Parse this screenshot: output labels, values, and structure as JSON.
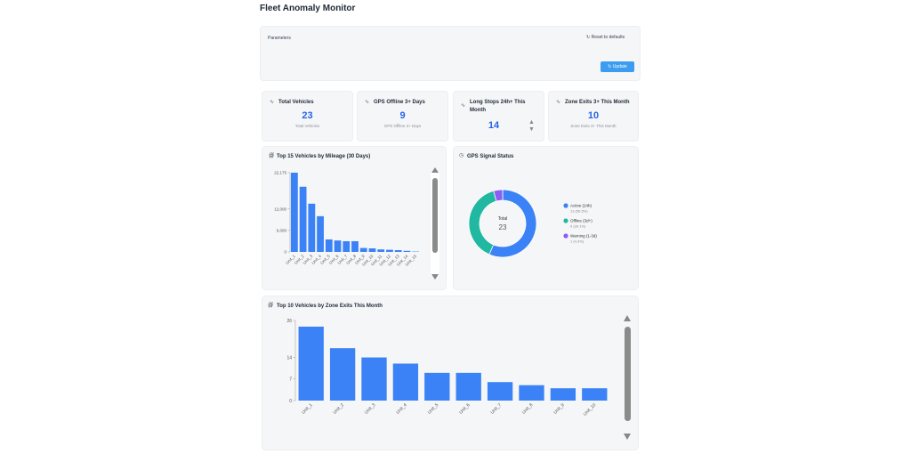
{
  "header": {
    "title": "Fleet Anomaly Monitor"
  },
  "parameters": {
    "label": "Parameters",
    "reset_button": "Reset to defaults",
    "update_button": "Update"
  },
  "kpis": [
    {
      "title": "Total Vehicles",
      "value": 23,
      "subtitle": "Total Vehicles"
    },
    {
      "title": "GPS Offline 3+ Days",
      "value": 9,
      "subtitle": "GPS Offline 3+ Days"
    },
    {
      "title": "Long Stops 24h+ This Month",
      "value": 14
    },
    {
      "title": "Zone Exits 3+ This Month",
      "value": 10,
      "subtitle": "Zone Exits 3+ This Month"
    }
  ],
  "chart_data": [
    {
      "type": "bar",
      "title": "Top 15 Vehicles by Mileage (30 Days)",
      "categories": [
        "Unit_1",
        "Unit_2",
        "Unit_3",
        "Unit_4",
        "Unit_5",
        "Unit_6",
        "Unit_7",
        "Unit_8",
        "Unit_9",
        "Unit_10",
        "Unit_11",
        "Unit_12",
        "Unit_13",
        "Unit_14",
        "Unit_15"
      ],
      "values": [
        22175,
        18250,
        13500,
        10000,
        3500,
        3200,
        3000,
        3000,
        1100,
        1000,
        700,
        600,
        500,
        300,
        100
      ],
      "color": "#3b82f6",
      "ylim": [
        0,
        22175
      ],
      "yticks": [
        0,
        {
          "value": 6000,
          "label": "6,000"
        },
        {
          "value": 12000,
          "label": "12,000"
        },
        {
          "value": 22175,
          "label": "22,175"
        }
      ],
      "grid": false
    },
    {
      "type": "pie",
      "title": "GPS Signal Status",
      "categories": [
        "Active (24h)",
        "Offline (3d+)",
        "Warning (1-3d)"
      ],
      "values": [
        13,
        9,
        1
      ],
      "value_labels": [
        "13 (56.5%)",
        "9 (39.1%)",
        "1 (4.3%)"
      ],
      "colors": [
        "#3b82f6",
        "#20b8a0",
        "#8b5cf6"
      ],
      "center_label": "Total",
      "center_value": 23
    },
    {
      "type": "bar",
      "title": "Top 10 Vehicles by Zone Exits This Month",
      "categories": [
        "Unit_1",
        "Unit_2",
        "Unit_3",
        "Unit_4",
        "Unit_5",
        "Unit_6",
        "Unit_7",
        "Unit_8",
        "Unit_9",
        "Unit_10"
      ],
      "values": [
        24,
        17,
        14,
        12,
        9,
        9,
        6,
        5,
        4,
        4
      ],
      "color": "#3b82f6",
      "ylim": [
        0,
        26
      ],
      "yticks": [
        0,
        7,
        14,
        26
      ],
      "grid": false
    }
  ]
}
